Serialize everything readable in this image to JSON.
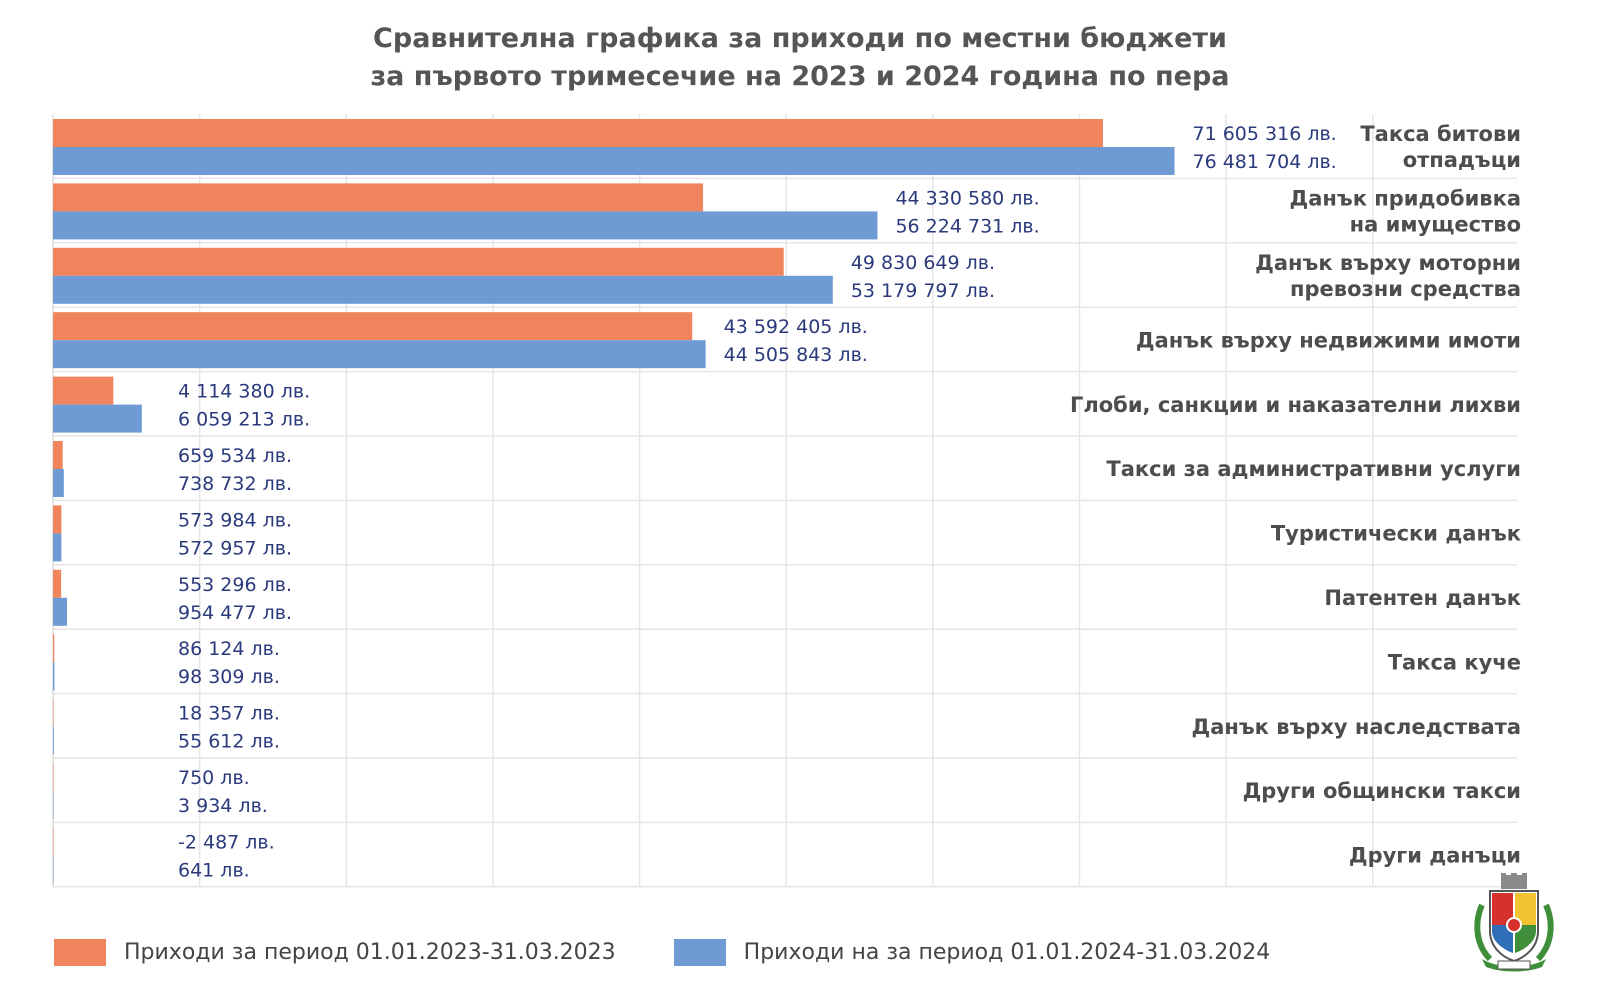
{
  "chart_data": {
    "type": "bar",
    "orientation": "horizontal",
    "title_lines": [
      "Сравнителна графика за приходи по местни бюджети",
      "за първото тримесечие на 2023 и 2024 година по пера"
    ],
    "categories": [
      "Такса битови отпадъци",
      "Данък придобивка на имущество",
      "Данък върху моторни превозни средства",
      "Данък върху недвижими имоти",
      "Глоби, санкции и наказателни лихви",
      "Такси за административни услуги",
      "Туристически данък",
      "Патентен данък",
      "Такса куче",
      "Данък върху наследствата",
      "Други общински такси",
      "Други данъци"
    ],
    "category_label_lines": [
      [
        "Такса битови",
        "отпадъци"
      ],
      [
        "Данък придобивка",
        "на имущество"
      ],
      [
        "Данък върху моторни",
        "превозни средства"
      ],
      [
        "Данък върху недвижими имоти"
      ],
      [
        "Глоби, санкции и наказателни лихви"
      ],
      [
        "Такси за административни услуги"
      ],
      [
        "Туристически данък"
      ],
      [
        "Патентен данък"
      ],
      [
        "Такса куче"
      ],
      [
        "Данък върху наследствата"
      ],
      [
        "Други общински такси"
      ],
      [
        "Други данъци"
      ]
    ],
    "series": [
      {
        "name": "Приходи за период 01.01.2023-31.03.2023",
        "color": "#f0845c",
        "values": [
          71605316,
          44330580,
          49830649,
          43592405,
          4114380,
          659534,
          573984,
          553296,
          86124,
          18357,
          750,
          -2487
        ],
        "labels": [
          "71 605 316 лв.",
          "44 330 580 лв.",
          "49 830 649 лв.",
          "43 592 405 лв.",
          "4 114 380 лв.",
          "659 534 лв.",
          "573 984 лв.",
          "553 296 лв.",
          "86 124 лв.",
          "18 357 лв.",
          "750 лв.",
          "-2 487 лв."
        ]
      },
      {
        "name": "Приходи на за период 01.01.2024-31.03.2024",
        "color": "#6f9bd5",
        "values": [
          76481704,
          56224731,
          53179797,
          44505843,
          6059213,
          738732,
          572957,
          954477,
          98309,
          55612,
          3934,
          641
        ],
        "labels": [
          "76 481 704 лв.",
          "56 224 731 лв.",
          "53 179 797 лв.",
          "44 505 843 лв.",
          "6 059 213 лв.",
          "738 732 лв.",
          "572 957 лв.",
          "954 477 лв.",
          "98 309 лв.",
          "55 612 лв.",
          "3 934 лв.",
          "641 лв."
        ]
      }
    ],
    "xlim": [
      0,
      100000000
    ],
    "grid": true,
    "legend_position": "bottom-left"
  },
  "colors": {
    "series_2023": "#f0845c",
    "series_2024": "#6f9bd5",
    "value_label": "#2a3a7c",
    "category_label": "#4d4d4d",
    "title": "#555555"
  },
  "logo": "sofia-municipality-coat-of-arms-icon"
}
